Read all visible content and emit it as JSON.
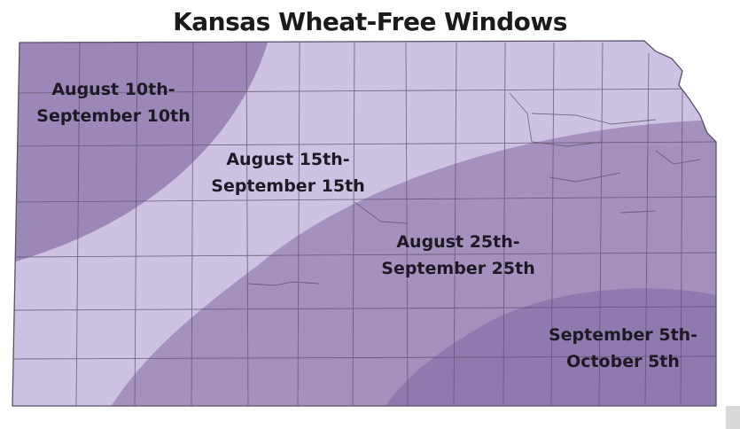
{
  "title": "Kansas Wheat-Free Windows",
  "colors": {
    "zone1": "#9b88b9",
    "zone2": "#cdc2e2",
    "zone3": "#a591be",
    "zone4": "#8f7ab0",
    "county_lines": "#5a4f66"
  },
  "zones": [
    {
      "id": "zone1",
      "line1": "August 10th-",
      "line2": "September 10th"
    },
    {
      "id": "zone2",
      "line1": "August 15th-",
      "line2": "September 15th"
    },
    {
      "id": "zone3",
      "line1": "August 25th-",
      "line2": "September 25th"
    },
    {
      "id": "zone4",
      "line1": "September 5th-",
      "line2": "October 5th"
    }
  ]
}
